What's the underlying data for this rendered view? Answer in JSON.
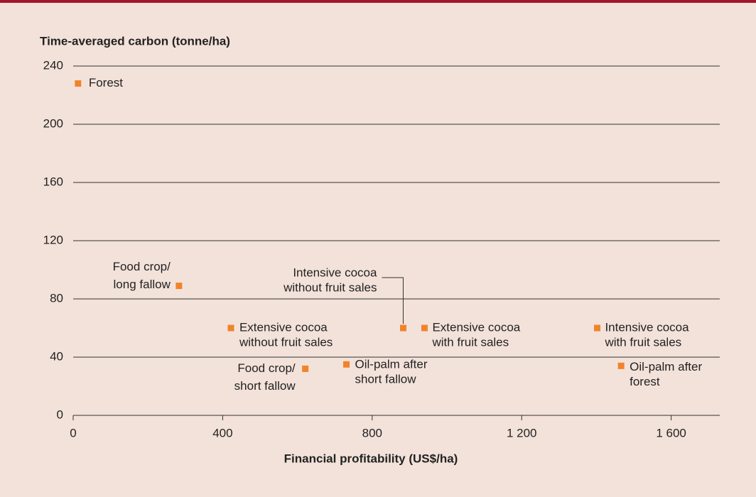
{
  "chart_data": {
    "type": "scatter",
    "ylabel": "Time-averaged carbon (tonne/ha)",
    "xlabel": "Financial profitability (US$/ha)",
    "x": [
      13,
      283,
      422,
      621,
      731,
      883,
      940,
      1402,
      1466
    ],
    "values": [
      228,
      89,
      60,
      32,
      35,
      60,
      60,
      60,
      34
    ],
    "labels": [
      [
        "Forest"
      ],
      [
        "Food crop/",
        "long fallow"
      ],
      [
        "Extensive cocoa",
        "without fruit sales"
      ],
      [
        "Food crop/",
        "short fallow"
      ],
      [
        "Oil-palm after",
        "short fallow"
      ],
      [
        "Intensive cocoa",
        "without fruit sales"
      ],
      [
        "Extensive cocoa",
        "with fruit sales"
      ],
      [
        "Intensive cocoa",
        "with fruit sales"
      ],
      [
        "Oil-palm after",
        "forest"
      ]
    ],
    "color": "#f0842a",
    "xlim": [
      0,
      1730
    ],
    "ylim": [
      0,
      240
    ],
    "xticks": [
      0,
      400,
      800,
      {
        "value": 1200,
        "label": "1 200"
      },
      {
        "value": 1600,
        "label": "1 600"
      }
    ],
    "yticks": [
      0,
      40,
      80,
      120,
      160,
      200,
      240
    ],
    "grid": true
  }
}
